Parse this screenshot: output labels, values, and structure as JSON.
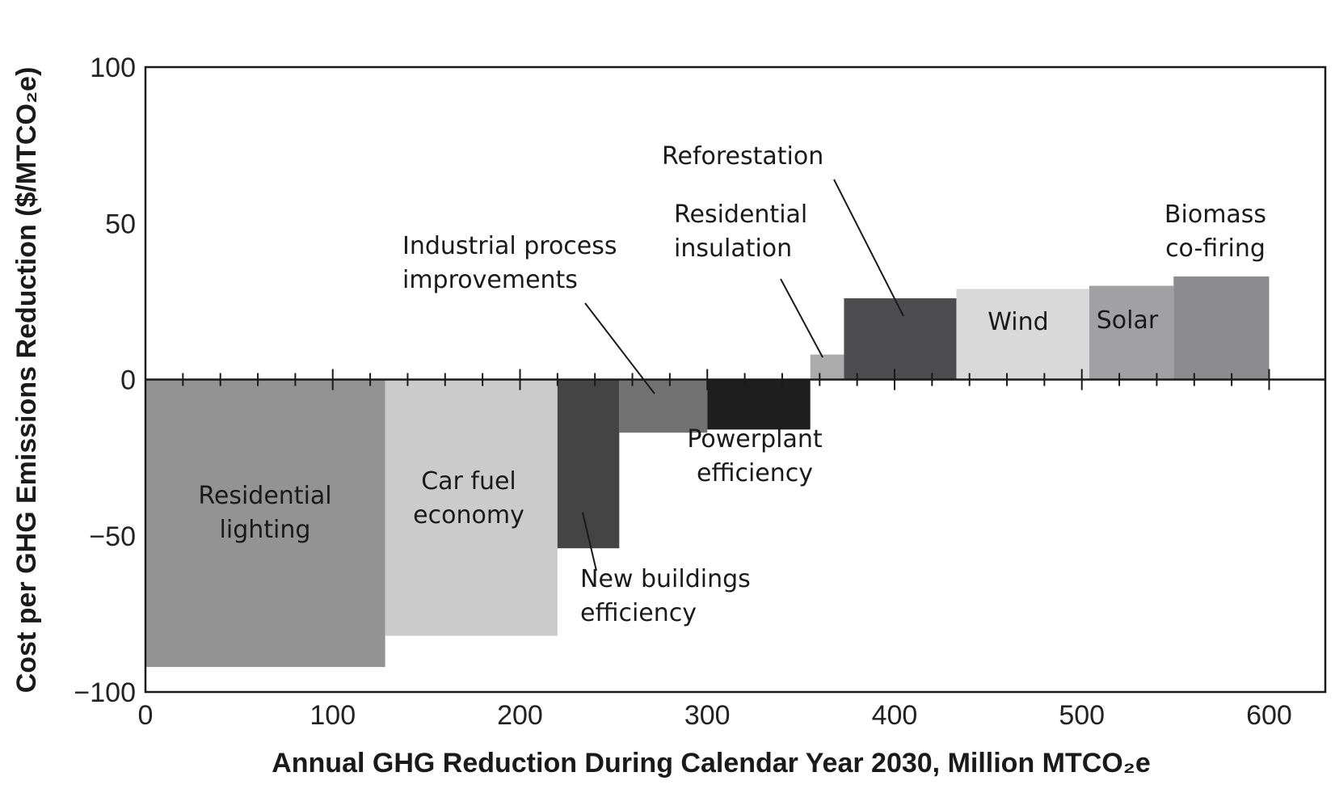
{
  "chart_data": {
    "type": "bar",
    "subtype": "marginal-abatement-cost-curve",
    "xlabel": "Annual GHG Reduction During Calendar Year 2030, Million MTCO₂e",
    "ylabel": "Cost per GHG Emissions Reduction ($/MTCO₂e)",
    "xlim": [
      0,
      630
    ],
    "ylim": [
      -100,
      100
    ],
    "x_ticks": [
      "0",
      "100",
      "200",
      "300",
      "400",
      "500",
      "600"
    ],
    "y_ticks": [
      "100",
      "50",
      "0",
      "−50",
      "−100"
    ],
    "grid": false,
    "legend": "none",
    "series": [
      {
        "name": "Residential lighting",
        "x_start": 0,
        "x_end": 128,
        "value": -92,
        "color": "#939393"
      },
      {
        "name": "Car fuel economy",
        "x_start": 128,
        "x_end": 220,
        "value": -82,
        "color": "#cbcbcb"
      },
      {
        "name": "New buildings efficiency",
        "x_start": 220,
        "x_end": 253,
        "value": -54,
        "color": "#444444"
      },
      {
        "name": "Industrial process improvements",
        "x_start": 253,
        "x_end": 300,
        "value": -17,
        "color": "#727272"
      },
      {
        "name": "Powerplant efficiency",
        "x_start": 300,
        "x_end": 355,
        "value": -16,
        "color": "#1e1e1e"
      },
      {
        "name": "Residential insulation",
        "x_start": 355,
        "x_end": 373,
        "value": 8,
        "color": "#ababab"
      },
      {
        "name": "Reforestation",
        "x_start": 373,
        "x_end": 433,
        "value": 26,
        "color": "#4d4d4f"
      },
      {
        "name": "Wind",
        "x_start": 433,
        "x_end": 504,
        "value": 29,
        "color": "#d9d9d9"
      },
      {
        "name": "Solar",
        "x_start": 504,
        "x_end": 549,
        "value": 30,
        "color": "#a1a1a3"
      },
      {
        "name": "Biomass co-firing",
        "x_start": 549,
        "x_end": 600,
        "value": 33,
        "color": "#8c8c8e"
      }
    ],
    "annotations": [
      {
        "series": "Residential lighting",
        "lines": [
          "Residential",
          "lighting"
        ],
        "style": "inside"
      },
      {
        "series": "Car fuel economy",
        "lines": [
          "Car fuel",
          "economy"
        ],
        "style": "inside"
      },
      {
        "series": "New buildings efficiency",
        "lines": [
          "New buildings",
          "efficiency"
        ],
        "style": "leader"
      },
      {
        "series": "Industrial process improvements",
        "lines": [
          "Industrial process",
          "improvements"
        ],
        "style": "leader"
      },
      {
        "series": "Powerplant efficiency",
        "lines": [
          "Powerplant",
          "efficiency"
        ],
        "style": "below"
      },
      {
        "series": "Residential insulation",
        "lines": [
          "Residential",
          "insulation"
        ],
        "style": "leader"
      },
      {
        "series": "Reforestation",
        "lines": [
          "Reforestation"
        ],
        "style": "leader"
      },
      {
        "series": "Wind",
        "lines": [
          "Wind"
        ],
        "style": "inside"
      },
      {
        "series": "Solar",
        "lines": [
          "Solar"
        ],
        "style": "inside"
      },
      {
        "series": "Biomass co-firing",
        "lines": [
          "Biomass",
          "co-firing"
        ],
        "style": "above"
      }
    ]
  }
}
